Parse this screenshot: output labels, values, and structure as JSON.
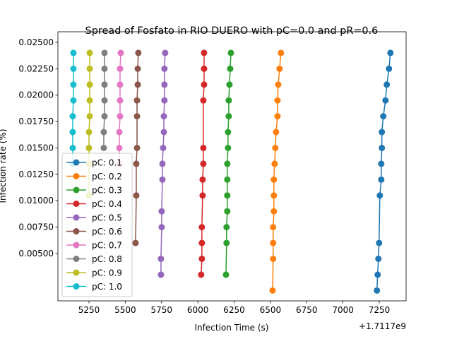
{
  "chart_data": {
    "type": "line",
    "title": "Spread of Fosfato in RIO DUERO with pC=0.0 and pR=0.6",
    "x_label": "Infection Time (s)",
    "y_label": "Infection rate (%)",
    "x_offset_label": "+1.7117e9",
    "xlim": [
      5036,
      7435
    ],
    "xticks": [
      5250,
      5500,
      5750,
      6000,
      6250,
      6500,
      6750,
      7000,
      7250
    ],
    "ylim": [
      0.00052,
      0.026
    ],
    "yticks": [
      {
        "value": 0.005,
        "label": "0.00500"
      },
      {
        "value": 0.0075,
        "label": "0.00750"
      },
      {
        "value": 0.01,
        "label": "0.01000"
      },
      {
        "value": 0.0125,
        "label": "0.01250"
      },
      {
        "value": 0.015,
        "label": "0.01500"
      },
      {
        "value": 0.0175,
        "label": "0.01750"
      },
      {
        "value": 0.02,
        "label": "0.02000"
      },
      {
        "value": 0.0225,
        "label": "0.02250"
      },
      {
        "value": 0.025,
        "label": "0.02500"
      }
    ],
    "legend": "lower left",
    "series": [
      {
        "name": "pC: 0.1",
        "color": "#1f77b4",
        "x": [
          7327,
          7317,
          7302,
          7293,
          7278,
          7268,
          7268,
          7264,
          7264,
          7254,
          7249,
          7244,
          7239,
          7234
        ],
        "values": [
          0.024,
          0.0225,
          0.021,
          0.0195,
          0.018,
          0.0165,
          0.015,
          0.0135,
          0.012,
          0.0105,
          0.006,
          0.0045,
          0.003,
          0.0015
        ]
      },
      {
        "name": "pC: 0.2",
        "color": "#ff7f0e",
        "x": [
          6573,
          6563,
          6554,
          6549,
          6549,
          6539,
          6534,
          6529,
          6524,
          6524,
          6524,
          6519,
          6519,
          6519,
          6515
        ],
        "values": [
          0.024,
          0.0225,
          0.021,
          0.0195,
          0.018,
          0.0165,
          0.015,
          0.0135,
          0.012,
          0.0105,
          0.009,
          0.0075,
          0.006,
          0.0045,
          0.0015
        ]
      },
      {
        "name": "pC: 0.3",
        "color": "#2ca02c",
        "x": [
          6228,
          6223,
          6218,
          6213,
          6213,
          6208,
          6208,
          6203,
          6203,
          6203,
          6203,
          6198,
          6198,
          6194
        ],
        "values": [
          0.024,
          0.0225,
          0.021,
          0.0195,
          0.018,
          0.0165,
          0.015,
          0.0135,
          0.012,
          0.0105,
          0.009,
          0.0075,
          0.006,
          0.003
        ]
      },
      {
        "name": "pC: 0.4",
        "color": "#d62728",
        "x": [
          6043,
          6043,
          6043,
          6038,
          6038,
          6038,
          6033,
          6033,
          6028,
          6028,
          6028,
          6023
        ],
        "values": [
          0.024,
          0.0225,
          0.021,
          0.0195,
          0.015,
          0.0135,
          0.012,
          0.0105,
          0.0075,
          0.006,
          0.0045,
          0.003
        ]
      },
      {
        "name": "pC: 0.5",
        "color": "#9467bd",
        "x": [
          5775,
          5770,
          5770,
          5770,
          5766,
          5766,
          5761,
          5756,
          5756,
          5751,
          5751,
          5746,
          5746
        ],
        "values": [
          0.024,
          0.0225,
          0.021,
          0.0195,
          0.018,
          0.0165,
          0.015,
          0.0135,
          0.012,
          0.009,
          0.0075,
          0.0045,
          0.003
        ]
      },
      {
        "name": "pC: 0.6",
        "color": "#8c564b",
        "x": [
          5590,
          5586,
          5586,
          5581,
          5581,
          5581,
          5576,
          5576,
          5571
        ],
        "values": [
          0.024,
          0.0225,
          0.021,
          0.0195,
          0.018,
          0.015,
          0.0135,
          0.0105,
          0.006
        ]
      },
      {
        "name": "pC: 0.7",
        "color": "#e377c2",
        "x": [
          5469,
          5464,
          5464,
          5464,
          5464,
          5459,
          5459,
          5459
        ],
        "values": [
          0.024,
          0.0225,
          0.021,
          0.0195,
          0.018,
          0.0165,
          0.015,
          0.0135
        ]
      },
      {
        "name": "pC: 0.8",
        "color": "#7f7f7f",
        "x": [
          5357,
          5357,
          5357,
          5357,
          5357,
          5352,
          5352
        ],
        "values": [
          0.024,
          0.0225,
          0.021,
          0.0195,
          0.018,
          0.0165,
          0.015
        ]
      },
      {
        "name": "pC: 0.9",
        "color": "#bcbd22",
        "x": [
          5255,
          5255,
          5255,
          5255,
          5255,
          5250,
          5250,
          5250,
          5250
        ],
        "values": [
          0.024,
          0.0225,
          0.021,
          0.0195,
          0.018,
          0.0165,
          0.015,
          0.0135,
          0.0105
        ]
      },
      {
        "name": "pC: 1.0",
        "color": "#17becf",
        "x": [
          5143,
          5143,
          5143,
          5143,
          5138,
          5138,
          5138,
          5138
        ],
        "values": [
          0.024,
          0.0225,
          0.021,
          0.0195,
          0.018,
          0.0165,
          0.015,
          0.0135
        ]
      }
    ]
  }
}
